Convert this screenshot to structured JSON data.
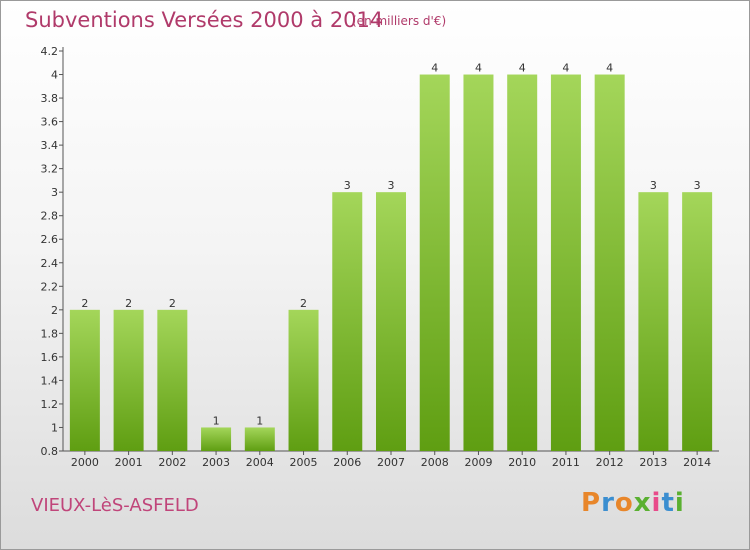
{
  "header": {
    "title": "Subventions Versées 2000 à 2014",
    "subtitle": "(en milliers d'€)"
  },
  "footer": {
    "place": "VIEUX-LèS-ASFELD",
    "logo": "Proxiti",
    "logo_colors": [
      "#e8862a",
      "#3b8ed0",
      "#e8862a",
      "#5ab031",
      "#e84a8a",
      "#3b8ed0",
      "#5ab031"
    ]
  },
  "colors": {
    "bar_top": "#a4d65a",
    "bar_bottom": "#5f9e12",
    "axis": "#555555",
    "text": "#333333"
  },
  "chart_data": {
    "type": "bar",
    "categories": [
      "2000",
      "2001",
      "2002",
      "2003",
      "2004",
      "2005",
      "2006",
      "2007",
      "2008",
      "2009",
      "2010",
      "2011",
      "2012",
      "2013",
      "2014"
    ],
    "values": [
      2,
      2,
      2,
      1,
      1,
      2,
      3,
      3,
      4,
      4,
      4,
      4,
      4,
      3,
      3
    ],
    "data_labels": [
      "2",
      "2",
      "2",
      "1",
      "1",
      "2",
      "3",
      "3",
      "4",
      "4",
      "4",
      "4",
      "4",
      "3",
      "3"
    ],
    "y_ticks": [
      "0.8",
      "1",
      "1.2",
      "1.4",
      "1.6",
      "1.8",
      "2",
      "2.2",
      "2.4",
      "2.6",
      "2.8",
      "3",
      "3.2",
      "3.4",
      "3.6",
      "3.8",
      "4",
      "4.2"
    ],
    "ylim": [
      0.8,
      4.2
    ],
    "grid": false,
    "title": "Subventions Versées 2000 à 2014",
    "xlabel": "",
    "ylabel": ""
  }
}
